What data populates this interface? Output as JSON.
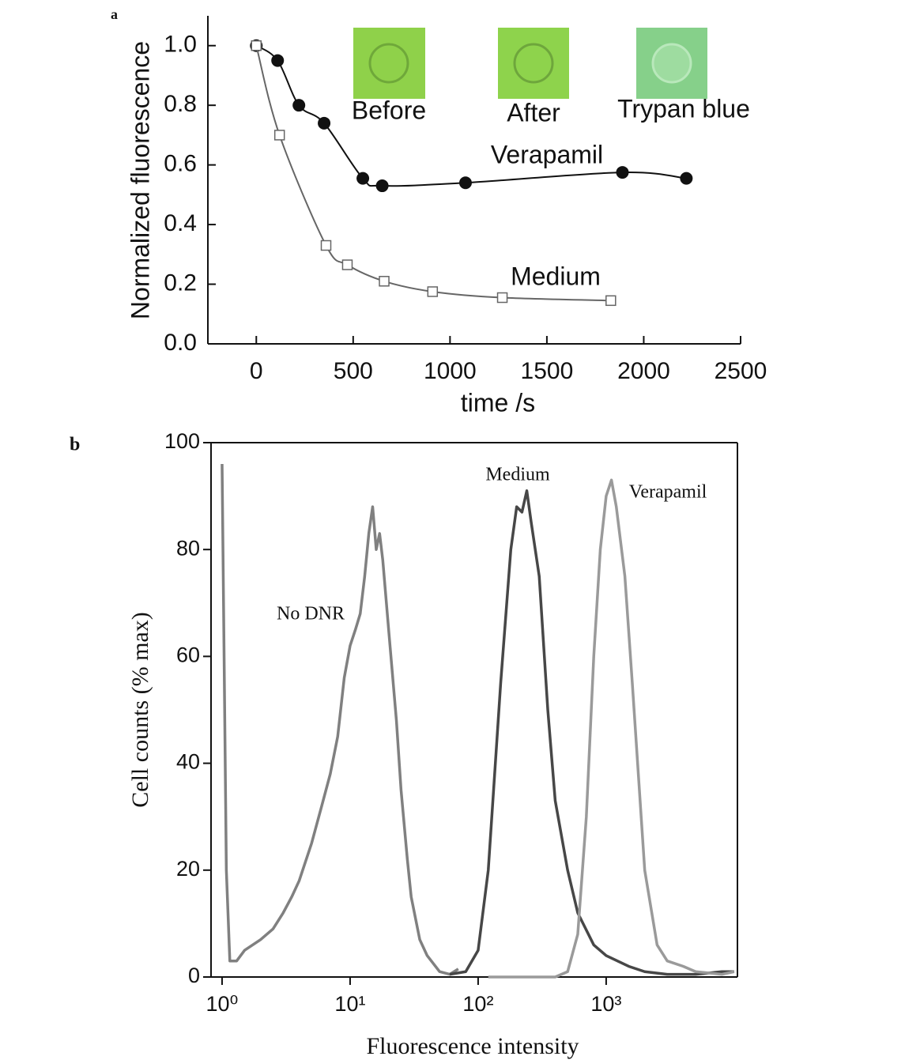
{
  "chart_data": [
    {
      "type": "line",
      "panel": "a",
      "x_label": "time /s",
      "y_label": "Normalized fluorescence",
      "xlim": [
        -250,
        2500
      ],
      "ylim": [
        0,
        1.1
      ],
      "xticks": [
        0,
        500,
        1000,
        1500,
        2000,
        2500
      ],
      "yticks": [
        {
          "value": 0,
          "label": "0.0"
        },
        0.2,
        0.4,
        0.6,
        0.8,
        {
          "value": 1,
          "label": "1.0"
        }
      ],
      "insets": [
        "Before",
        "After",
        "Trypan blue"
      ],
      "series": [
        {
          "name": "Verapamil",
          "color": "#111111",
          "marker": "circle",
          "x": [
            0,
            110,
            220,
            350,
            550,
            650,
            1080,
            1890,
            2220
          ],
          "values": [
            1.0,
            0.95,
            0.8,
            0.74,
            0.555,
            0.53,
            0.54,
            0.575,
            0.555
          ]
        },
        {
          "name": "Medium",
          "color": "#666666",
          "marker": "square",
          "x": [
            0,
            120,
            360,
            470,
            660,
            910,
            1270,
            1830
          ],
          "values": [
            1.0,
            0.7,
            0.33,
            0.265,
            0.21,
            0.175,
            0.155,
            0.145
          ]
        }
      ]
    },
    {
      "type": "line",
      "panel": "b",
      "x_label": "Fluorescence intensity",
      "y_label": "Cell counts (% max)",
      "xscale": "log",
      "xlim": [
        0.82,
        10600
      ],
      "ylim": [
        0,
        100
      ],
      "xticks": [
        {
          "value": 1,
          "label": "10⁰"
        },
        {
          "value": 10,
          "label": "10¹"
        },
        {
          "value": 100,
          "label": "10²"
        },
        {
          "value": 1000,
          "label": "10³"
        }
      ],
      "yticks": [
        0,
        20,
        40,
        60,
        80,
        100
      ],
      "series": [
        {
          "name": "No DNR",
          "color": "#808080",
          "x": [
            1.0,
            1.08,
            1.15,
            1.3,
            1.5,
            2,
            2.5,
            3,
            3.5,
            4,
            5,
            6,
            7,
            8,
            9,
            10,
            11,
            12,
            13,
            14,
            15,
            16,
            17,
            18,
            20,
            23,
            25,
            28,
            30,
            35,
            40,
            50,
            60,
            70
          ],
          "values": [
            96,
            20,
            3,
            3,
            5,
            7,
            9,
            12,
            15,
            18,
            25,
            32,
            38,
            45,
            56,
            62,
            65,
            68,
            75,
            83,
            88,
            80,
            83,
            78,
            65,
            48,
            35,
            22,
            15,
            7,
            4,
            1,
            0.5,
            1.5
          ]
        },
        {
          "name": "Medium",
          "color": "#474747",
          "x": [
            60,
            80,
            100,
            120,
            150,
            180,
            200,
            220,
            240,
            260,
            300,
            350,
            400,
            500,
            600,
            800,
            1000,
            1500,
            2000,
            3000,
            5000,
            8000,
            10000
          ],
          "values": [
            0.5,
            1,
            5,
            20,
            55,
            80,
            88,
            87,
            91,
            85,
            75,
            50,
            33,
            20,
            12,
            6,
            4,
            2,
            1,
            0.5,
            0.5,
            1,
            1
          ]
        },
        {
          "name": "Verapamil",
          "color": "#9a9a9a",
          "x": [
            120,
            400,
            500,
            600,
            700,
            800,
            900,
            1000,
            1100,
            1200,
            1400,
            1600,
            2000,
            2500,
            3000,
            4000,
            5000,
            8000,
            10000
          ],
          "values": [
            0,
            0,
            1,
            8,
            30,
            60,
            80,
            90,
            93,
            88,
            75,
            55,
            20,
            6,
            3,
            2,
            1,
            0.5,
            1
          ]
        }
      ]
    }
  ]
}
